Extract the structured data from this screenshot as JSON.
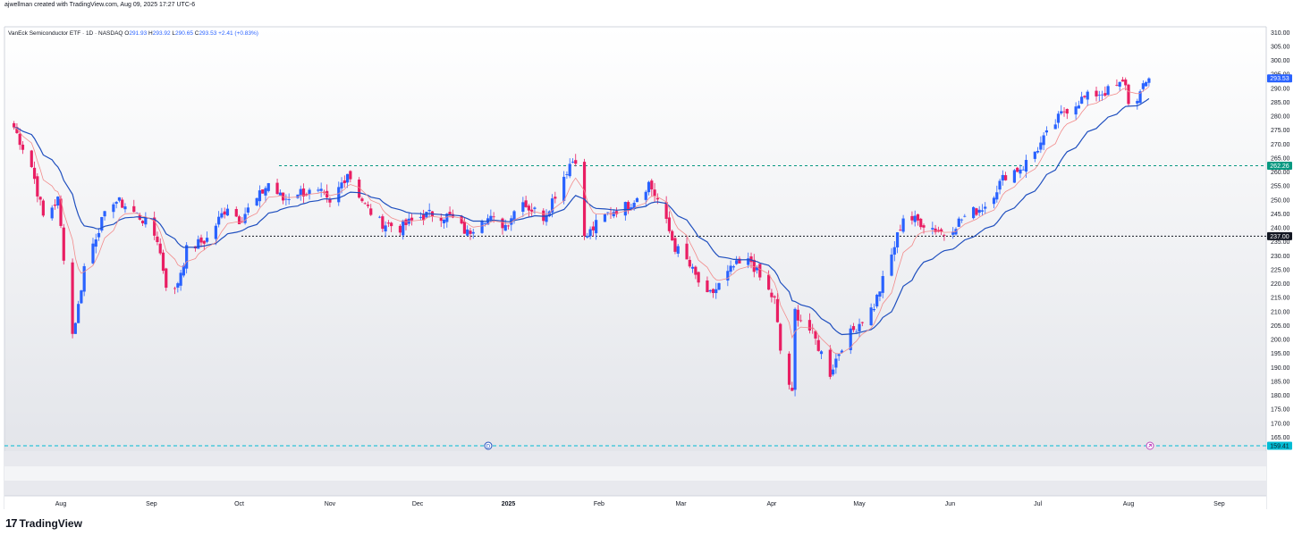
{
  "header": {
    "credit": "ajwellman created with TradingView.com, Aug 09, 2025 17:27 UTC-6"
  },
  "legend": {
    "symbol": "VanEck Semiconductor ETF · 1D · NASDAQ",
    "o_label": "O",
    "o_value": "291.93",
    "h_label": "H",
    "h_value": "293.92",
    "l_label": "L",
    "l_value": "290.65",
    "c_label": "C",
    "c_value": "293.53",
    "change": "+2.41 (+0.83%)"
  },
  "brand": {
    "logo_mark": "17",
    "name": "TradingView"
  },
  "colors": {
    "up": "#2962ff",
    "down": "#e91e63",
    "ema_fast": "#f28b8b",
    "ema_slow": "#1f4fbf",
    "resistance": "#089981",
    "support": "#131722",
    "low_line": "#00bcd4"
  },
  "chart_data": {
    "type": "candlestick",
    "title": "VanEck Semiconductor ETF · 1D · NASDAQ",
    "ylim": [
      160,
      312
    ],
    "y_ticks": [
      "310.00",
      "305.00",
      "300.00",
      "295.00",
      "290.00",
      "285.00",
      "280.00",
      "275.00",
      "270.00",
      "265.00",
      "260.00",
      "255.00",
      "250.00",
      "245.00",
      "240.00",
      "235.00",
      "230.00",
      "225.00",
      "220.00",
      "215.00",
      "210.00",
      "205.00",
      "200.00",
      "195.00",
      "190.00",
      "185.00",
      "180.00",
      "175.00",
      "170.00",
      "165.00"
    ],
    "x_ticks": [
      "Aug",
      "Sep",
      "Oct",
      "Nov",
      "Dec",
      "2025",
      "Feb",
      "Mar",
      "Apr",
      "May",
      "Jun",
      "Jul",
      "Aug",
      "Sep"
    ],
    "price_labels": {
      "last": "293.53",
      "resistance": "262.26",
      "support": "237.00",
      "low": "159.41"
    },
    "levels": {
      "resistance": 262.26,
      "support": 237.0,
      "low": 159.41
    },
    "markers": [
      "D"
    ],
    "anchors": [
      [
        "2024-07-16",
        276
      ],
      [
        "2024-07-22",
        262
      ],
      [
        "2024-07-26",
        244
      ],
      [
        "2024-07-31",
        250
      ],
      [
        "2024-08-02",
        230
      ],
      [
        "2024-08-05",
        202
      ],
      [
        "2024-08-07",
        212
      ],
      [
        "2024-08-09",
        226
      ],
      [
        "2024-08-14",
        240
      ],
      [
        "2024-08-19",
        250
      ],
      [
        "2024-08-23",
        248
      ],
      [
        "2024-08-29",
        243
      ],
      [
        "2024-09-03",
        236
      ],
      [
        "2024-09-06",
        220
      ],
      [
        "2024-09-09",
        217
      ],
      [
        "2024-09-13",
        232
      ],
      [
        "2024-09-20",
        236
      ],
      [
        "2024-09-27",
        248
      ],
      [
        "2024-10-01",
        243
      ],
      [
        "2024-10-07",
        250
      ],
      [
        "2024-10-11",
        256
      ],
      [
        "2024-10-16",
        250
      ],
      [
        "2024-10-21",
        253
      ],
      [
        "2024-10-29",
        252
      ],
      [
        "2024-11-01",
        248
      ],
      [
        "2024-11-07",
        260
      ],
      [
        "2024-11-13",
        248
      ],
      [
        "2024-11-18",
        242
      ],
      [
        "2024-11-25",
        240
      ],
      [
        "2024-12-02",
        244
      ],
      [
        "2024-12-06",
        245
      ],
      [
        "2024-12-12",
        244
      ],
      [
        "2024-12-18",
        238
      ],
      [
        "2024-12-23",
        244
      ],
      [
        "2024-12-31",
        241
      ],
      [
        "2025-01-06",
        251
      ],
      [
        "2025-01-07",
        248
      ],
      [
        "2025-01-13",
        244
      ],
      [
        "2025-01-16",
        250
      ],
      [
        "2025-01-22",
        263
      ],
      [
        "2025-01-24",
        265
      ],
      [
        "2025-01-27",
        236
      ],
      [
        "2025-01-31",
        241
      ],
      [
        "2025-02-05",
        246
      ],
      [
        "2025-02-11",
        248
      ],
      [
        "2025-02-18",
        256
      ],
      [
        "2025-02-21",
        250
      ],
      [
        "2025-02-27",
        233
      ],
      [
        "2025-03-03",
        228
      ],
      [
        "2025-03-10",
        215
      ],
      [
        "2025-03-13",
        218
      ],
      [
        "2025-03-19",
        226
      ],
      [
        "2025-03-25",
        228
      ],
      [
        "2025-03-28",
        222
      ],
      [
        "2025-04-02",
        214
      ],
      [
        "2025-04-04",
        196
      ],
      [
        "2025-04-08",
        180
      ],
      [
        "2025-04-09",
        210
      ],
      [
        "2025-04-15",
        202
      ],
      [
        "2025-04-21",
        188
      ],
      [
        "2025-04-25",
        198
      ],
      [
        "2025-05-01",
        206
      ],
      [
        "2025-05-06",
        212
      ],
      [
        "2025-05-12",
        230
      ],
      [
        "2025-05-16",
        244
      ],
      [
        "2025-05-22",
        242
      ],
      [
        "2025-05-30",
        238
      ],
      [
        "2025-06-06",
        244
      ],
      [
        "2025-06-13",
        248
      ],
      [
        "2025-06-20",
        259
      ],
      [
        "2025-06-26",
        262
      ],
      [
        "2025-07-02",
        270
      ],
      [
        "2025-07-10",
        282
      ],
      [
        "2025-07-16",
        286
      ],
      [
        "2025-07-21",
        288
      ],
      [
        "2025-07-25",
        289
      ],
      [
        "2025-07-31",
        292
      ],
      [
        "2025-08-01",
        284
      ],
      [
        "2025-08-05",
        288
      ],
      [
        "2025-08-08",
        293.53
      ]
    ]
  }
}
